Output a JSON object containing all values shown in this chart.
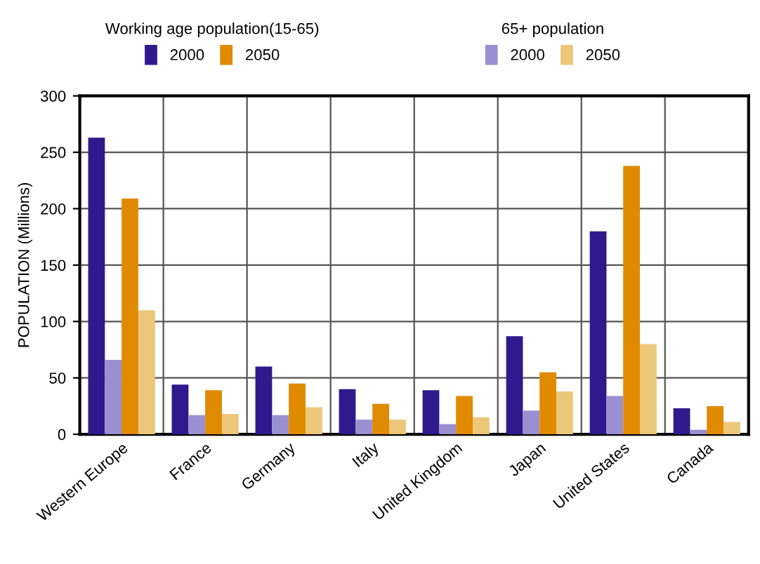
{
  "chart_data": {
    "type": "bar",
    "ylabel": "POPULATION (Millions)",
    "categories": [
      "Western Europe",
      "France",
      "Germany",
      "Italy",
      "United Kingdom",
      "Japan",
      "United States",
      "Canada"
    ],
    "series": [
      {
        "name": "2000",
        "color": "#2e1a8c",
        "values": [
          263,
          44,
          60,
          40,
          39,
          87,
          180,
          23
        ]
      },
      {
        "name": "2000",
        "color": "#9a8fd0",
        "values": [
          66,
          17,
          17,
          13,
          9,
          21,
          34,
          4
        ]
      },
      {
        "name": "2050",
        "color": "#e08a00",
        "values": [
          209,
          39,
          45,
          27,
          34,
          55,
          238,
          25
        ]
      },
      {
        "name": "2050",
        "color": "#ecc77a",
        "values": [
          110,
          18,
          24,
          13,
          15,
          38,
          80,
          11
        ]
      }
    ],
    "annotations": [
      "Working age population(15-65)",
      "65+ population"
    ],
    "ylim": [
      0,
      300
    ],
    "yticks": [
      0,
      50,
      100,
      150,
      200,
      250,
      300
    ],
    "grid": true,
    "legend": "top"
  }
}
